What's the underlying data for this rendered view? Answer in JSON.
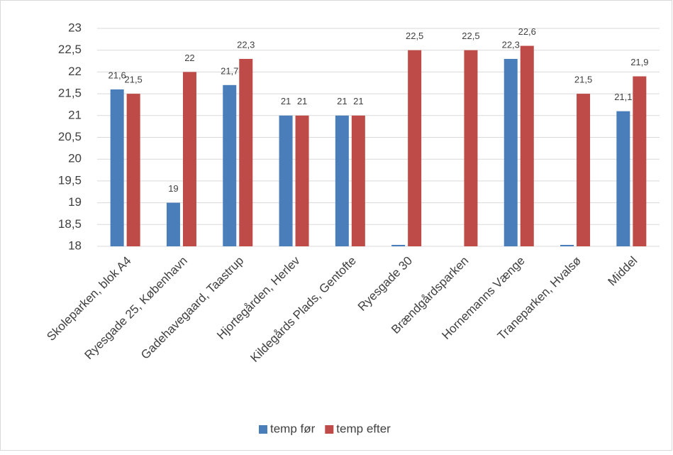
{
  "chart_data": {
    "type": "bar",
    "categories": [
      "Skoleparken, blok A4",
      "Ryesgade 25, København",
      "Gadehavegaard, Taastrup",
      "Hjortegården, Herlev",
      "Kildegårds Plads, Gentofte",
      "Ryesgade 30",
      "Brændgårdsparken",
      "Hornemanns Vænge",
      "Traneparken, Hvalsø",
      "Middel"
    ],
    "series": [
      {
        "name": "temp før",
        "color": "#4a7ebb",
        "values": [
          21.6,
          19,
          21.7,
          21,
          21,
          18,
          null,
          22.3,
          18,
          21.1
        ],
        "value_labels": [
          "21,6",
          "19",
          "21,7",
          "21",
          "21",
          null,
          null,
          "22,3",
          null,
          "21,1"
        ]
      },
      {
        "name": "temp efter",
        "color": "#be4b48",
        "values": [
          21.5,
          22,
          22.3,
          21,
          21,
          22.5,
          22.5,
          22.6,
          21.5,
          21.9
        ],
        "value_labels": [
          "21,5",
          "22",
          "22,3",
          "21",
          "21",
          "22,5",
          "22,5",
          "22,6",
          "21,5",
          "21,9"
        ]
      }
    ],
    "ylim": [
      18,
      23
    ],
    "yticks": [
      18,
      {
        "value": 18.5,
        "label": "18,5"
      },
      19,
      {
        "value": 19.5,
        "label": "19,5"
      },
      20,
      {
        "value": 20.5,
        "label": "20,5"
      },
      21,
      {
        "value": 21.5,
        "label": "21,5"
      },
      22,
      {
        "value": 22.5,
        "label": "22,5"
      },
      23
    ],
    "grid": true,
    "legend": "bottom"
  }
}
